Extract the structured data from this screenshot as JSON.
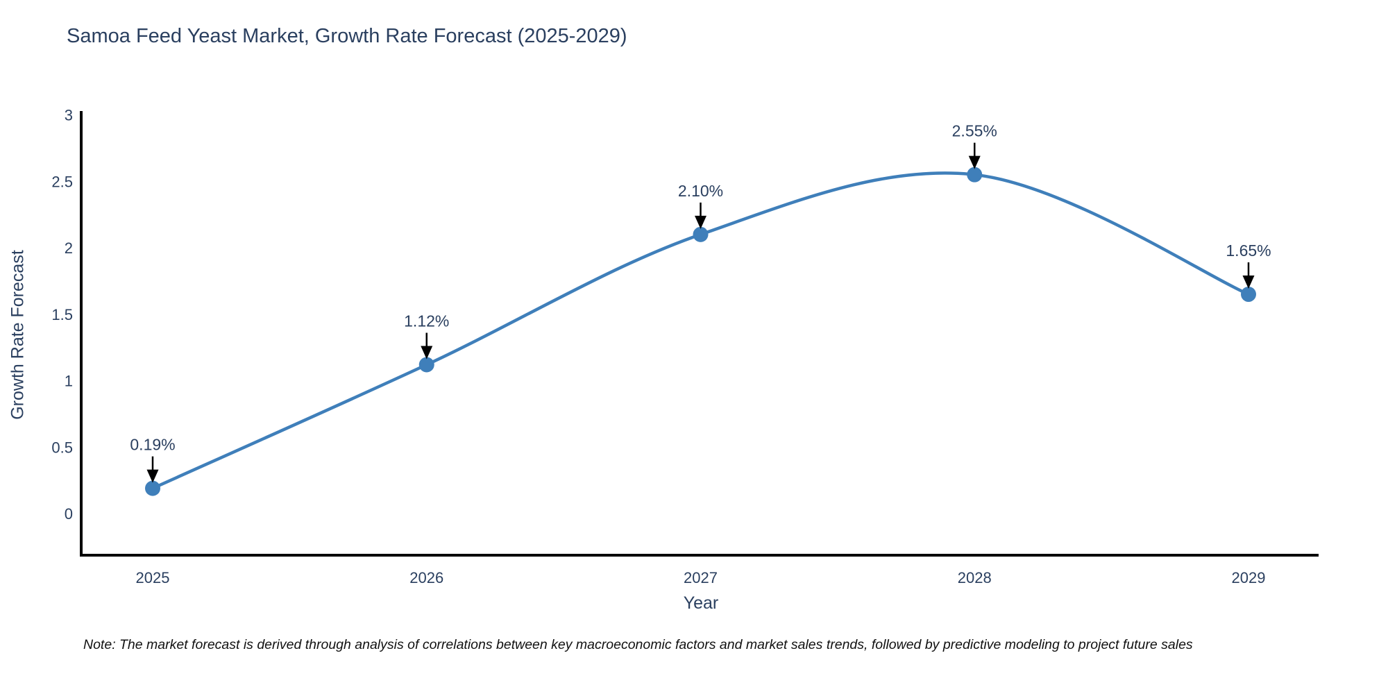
{
  "title": "Samoa Feed Yeast Market, Growth Rate Forecast (2025-2029)",
  "note": "Note: The market forecast is derived through analysis of correlations between key macroeconomic factors and market sales trends, followed by predictive modeling to project future sales",
  "chart_data": {
    "type": "line",
    "title": "Samoa Feed Yeast Market, Growth Rate Forecast (2025-2029)",
    "xlabel": "Year",
    "ylabel": "Growth Rate Forecast",
    "categories": [
      "2025",
      "2026",
      "2027",
      "2028",
      "2029"
    ],
    "values": [
      0.19,
      1.12,
      2.1,
      2.55,
      1.65
    ],
    "point_labels": [
      "0.19%",
      "1.12%",
      "2.10%",
      "2.55%",
      "1.65%"
    ],
    "yticks": [
      0,
      0.5,
      1,
      1.5,
      2,
      2.5,
      3
    ],
    "ylim": [
      -0.31,
      3.04
    ],
    "grid": false,
    "legend_position": "none",
    "curve": "spline",
    "colors": {
      "line": "#3f7fba",
      "marker": "#3f7fba",
      "axis_spine": "#000000",
      "tick_text": "#2a3f5f",
      "title_text": "#2a3f5f",
      "annotation_text": "#2a3f5f",
      "annotation_arrow": "#000000",
      "background": "#ffffff"
    }
  }
}
